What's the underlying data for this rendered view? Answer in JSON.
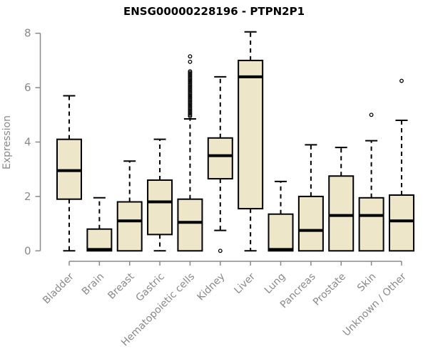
{
  "chart": {
    "title": "ENSG00000228196 - PTPN2P1",
    "ylabel": "Expression"
  },
  "chart_data": {
    "type": "boxplot",
    "title": "ENSG00000228196 - PTPN2P1",
    "xlabel": "",
    "ylabel": "Expression",
    "ylim": [
      0,
      8
    ],
    "yticks": [
      0,
      2,
      4,
      6,
      8
    ],
    "grid": false,
    "legend": "none",
    "colors": {
      "box_fill": "#EDE6C8",
      "box_border": "#000000",
      "median": "#000000",
      "whisker": "#000000",
      "axis": "#898989",
      "tick_label": "#898989",
      "title": "#000000",
      "background": "#ffffff"
    },
    "categories": [
      "Bladder",
      "Brain",
      "Breast",
      "Gastric",
      "Hematopoietic cells",
      "Kidney",
      "Liver",
      "Lung",
      "Pancreas",
      "Prostate",
      "Skin",
      "Unknown / Other"
    ],
    "series": [
      {
        "category": "Bladder",
        "whisker_low": 0,
        "q1": 1.9,
        "median": 2.95,
        "q3": 4.1,
        "whisker_high": 5.7,
        "outliers": []
      },
      {
        "category": "Brain",
        "whisker_low": 0,
        "q1": 0,
        "median": 0.05,
        "q3": 0.8,
        "whisker_high": 1.95,
        "outliers": []
      },
      {
        "category": "Breast",
        "whisker_low": 0,
        "q1": 0,
        "median": 1.1,
        "q3": 1.8,
        "whisker_high": 3.3,
        "outliers": []
      },
      {
        "category": "Gastric",
        "whisker_low": 0,
        "q1": 0.6,
        "median": 1.8,
        "q3": 2.6,
        "whisker_high": 4.1,
        "outliers": []
      },
      {
        "category": "Hematopoietic cells",
        "whisker_low": 0,
        "q1": 0,
        "median": 1.05,
        "q3": 1.9,
        "whisker_high": 4.85,
        "outliers": [
          4.95,
          5.0,
          5.05,
          5.1,
          5.15,
          5.2,
          5.25,
          5.3,
          5.35,
          5.4,
          5.45,
          5.5,
          5.55,
          5.6,
          5.65,
          5.7,
          5.75,
          5.8,
          5.85,
          5.9,
          5.95,
          6.0,
          6.05,
          6.1,
          6.15,
          6.2,
          6.25,
          6.3,
          6.35,
          6.4,
          6.45,
          6.5,
          6.55,
          6.6,
          6.95,
          7.15
        ]
      },
      {
        "category": "Kidney",
        "whisker_low": 0.75,
        "q1": 2.65,
        "median": 3.5,
        "q3": 4.15,
        "whisker_high": 6.4,
        "outliers": [
          0.0
        ]
      },
      {
        "category": "Liver",
        "whisker_low": 0,
        "q1": 1.55,
        "median": 6.4,
        "q3": 7.0,
        "whisker_high": 8.05,
        "outliers": []
      },
      {
        "category": "Lung",
        "whisker_low": 0,
        "q1": 0,
        "median": 0.05,
        "q3": 1.35,
        "whisker_high": 2.55,
        "outliers": []
      },
      {
        "category": "Pancreas",
        "whisker_low": 0,
        "q1": 0,
        "median": 0.75,
        "q3": 2.0,
        "whisker_high": 3.9,
        "outliers": []
      },
      {
        "category": "Prostate",
        "whisker_low": 0,
        "q1": 0,
        "median": 1.3,
        "q3": 2.75,
        "whisker_high": 3.8,
        "outliers": []
      },
      {
        "category": "Skin",
        "whisker_low": 0,
        "q1": 0,
        "median": 1.3,
        "q3": 1.95,
        "whisker_high": 4.05,
        "outliers": [
          5.0
        ]
      },
      {
        "category": "Unknown / Other",
        "whisker_low": 0,
        "q1": 0,
        "median": 1.1,
        "q3": 2.05,
        "whisker_high": 4.8,
        "outliers": [
          6.25
        ]
      }
    ]
  }
}
